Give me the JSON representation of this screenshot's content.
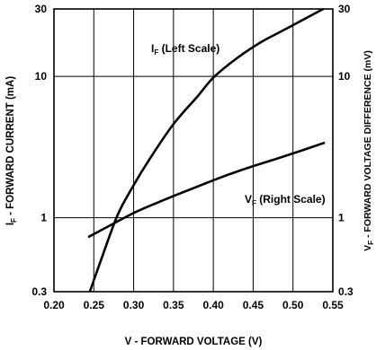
{
  "chart_data": {
    "type": "line",
    "xlabel": "V - FORWARD VOLTAGE (V)",
    "ylabel_left": {
      "main": "I",
      "sub": "F",
      "rest": " - FORWARD CURRENT (mA)"
    },
    "ylabel_right": {
      "main": "V",
      "sub": "F",
      "rest": " - FORWARD VOLTAGE DIFFERENCE (mV)"
    },
    "xlim": [
      0.2,
      0.55
    ],
    "ylim": [
      0.3,
      30
    ],
    "yscale": "log",
    "grid": true,
    "x_ticks": [
      "0.20",
      "0.25",
      "0.30",
      "0.35",
      "0.40",
      "0.45",
      "0.50",
      "0.55"
    ],
    "y_ticks_left": [
      "0.3",
      "1",
      "10",
      "30"
    ],
    "y_ticks_right": [
      "0.3",
      "1",
      "10",
      "30"
    ],
    "series": [
      {
        "name": "I_F (Left Scale)",
        "axis": "left",
        "x": [
          0.245,
          0.26,
          0.28,
          0.3,
          0.32,
          0.35,
          0.38,
          0.4,
          0.43,
          0.46,
          0.49,
          0.52,
          0.538
        ],
        "y": [
          0.3,
          0.52,
          1.05,
          1.7,
          2.6,
          4.6,
          7.2,
          9.8,
          13.5,
          17.5,
          21.5,
          26.5,
          30
        ]
      },
      {
        "name": "V_F (Right Scale)",
        "axis": "right",
        "x": [
          0.243,
          0.27,
          0.3,
          0.33,
          0.36,
          0.39,
          0.42,
          0.45,
          0.48,
          0.51,
          0.54
        ],
        "y": [
          0.73,
          0.88,
          1.08,
          1.28,
          1.5,
          1.75,
          2.03,
          2.32,
          2.62,
          2.98,
          3.4
        ]
      }
    ],
    "annotations": [
      {
        "main": "I",
        "sub": "F",
        "rest": " (Left Scale)"
      },
      {
        "main": "V",
        "sub": "F",
        "rest": " (Right Scale)"
      }
    ]
  }
}
